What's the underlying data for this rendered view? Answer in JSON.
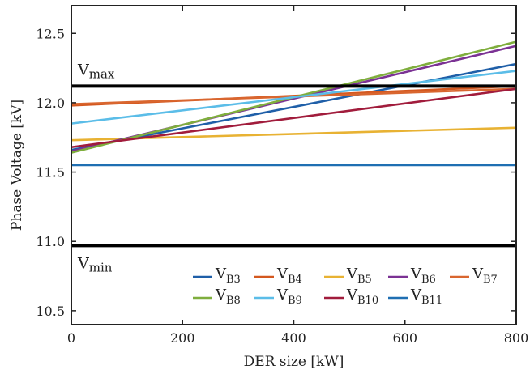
{
  "chart_data": {
    "type": "line",
    "xlabel": "DER size [kW]",
    "ylabel": "Phase Voltage [kV]",
    "xlim": [
      0,
      800
    ],
    "ylim": [
      10.4,
      12.7
    ],
    "xticks": [
      0,
      200,
      400,
      600,
      800
    ],
    "yticks": [
      10.5,
      11.0,
      11.5,
      12.0,
      12.5
    ],
    "xtick_labels": [
      "0",
      "200",
      "400",
      "600",
      "800"
    ],
    "ytick_labels": [
      "10.5",
      "11.0",
      "11.5",
      "12.0",
      "12.5"
    ],
    "grid": false,
    "legend_position": "bottom",
    "x": [
      0,
      800
    ],
    "series": [
      {
        "name": "B3",
        "color": "#1f5fa8",
        "values": [
          11.66,
          12.28
        ]
      },
      {
        "name": "B4",
        "color": "#d4581f",
        "values": [
          11.98,
          12.12
        ]
      },
      {
        "name": "B5",
        "color": "#e8b233",
        "values": [
          11.73,
          11.82
        ]
      },
      {
        "name": "B6",
        "color": "#7b3294",
        "values": [
          11.65,
          12.41
        ]
      },
      {
        "name": "B7",
        "color": "#d9662f",
        "values": [
          11.99,
          12.1
        ]
      },
      {
        "name": "B8",
        "color": "#7fae3d",
        "values": [
          11.64,
          12.44
        ]
      },
      {
        "name": "B9",
        "color": "#5bbde8",
        "values": [
          11.85,
          12.23
        ]
      },
      {
        "name": "B10",
        "color": "#a11c3c",
        "values": [
          11.68,
          12.1
        ]
      },
      {
        "name": "B11",
        "color": "#1f6fb2",
        "values": [
          11.55,
          11.55
        ]
      }
    ],
    "reference_lines": [
      {
        "name": "V_max",
        "value": 12.12,
        "label_main": "V",
        "label_sub": "max",
        "color": "#000000"
      },
      {
        "name": "V_min",
        "value": 10.97,
        "label_main": "V",
        "label_sub": "min",
        "color": "#000000"
      }
    ],
    "legend_prefix": "V"
  }
}
